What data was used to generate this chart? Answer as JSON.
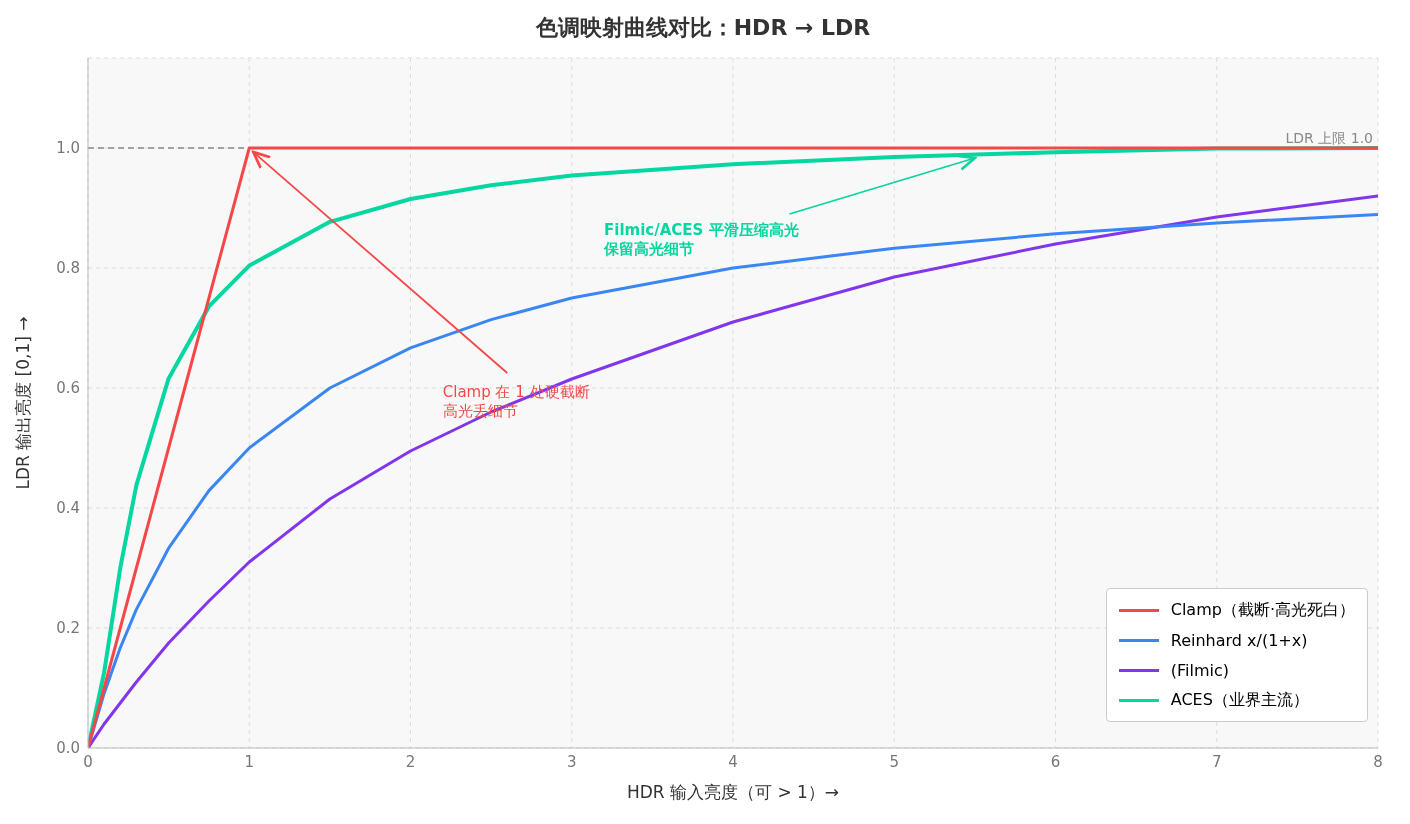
{
  "chart_data": {
    "type": "line",
    "title": "色调映射曲线对比：HDR → LDR",
    "xlabel": "HDR 输入亮度（可 > 1）→",
    "ylabel": "LDR 输出亮度 [0,1] →",
    "x": [
      0,
      0.1,
      0.2,
      0.3,
      0.5,
      0.75,
      1,
      1.5,
      2,
      2.5,
      3,
      4,
      5,
      6,
      7,
      8
    ],
    "series": [
      {
        "name": "Clamp（截断·高光死白）",
        "color": "#f44848",
        "values": [
          0,
          0.1,
          0.2,
          0.3,
          0.5,
          0.75,
          1,
          1,
          1,
          1,
          1,
          1,
          1,
          1,
          1,
          1
        ]
      },
      {
        "name": "Reinhard  x/(1+x)",
        "color": "#3a86f5",
        "values": [
          0,
          0.091,
          0.167,
          0.231,
          0.333,
          0.429,
          0.5,
          0.6,
          0.667,
          0.714,
          0.75,
          0.8,
          0.833,
          0.857,
          0.875,
          0.889
        ]
      },
      {
        "name": "(Filmic)",
        "color": "#8236ec",
        "values": [
          0,
          0.04,
          0.075,
          0.11,
          0.175,
          0.245,
          0.31,
          0.415,
          0.495,
          0.56,
          0.615,
          0.71,
          0.785,
          0.84,
          0.885,
          0.92
        ]
      },
      {
        "name": "ACES（业界主流）",
        "color": "#06d6a0",
        "values": [
          0,
          0.126,
          0.3,
          0.438,
          0.616,
          0.736,
          0.804,
          0.877,
          0.915,
          0.938,
          0.954,
          0.973,
          0.985,
          0.993,
          0.999,
          1
        ]
      }
    ],
    "xlim": [
      0,
      8
    ],
    "xticks": [
      0,
      1,
      2,
      3,
      4,
      5,
      6,
      7,
      8
    ],
    "ylim": [
      0,
      1.15
    ],
    "yticks": [
      {
        "value": 0,
        "label": "0.0"
      },
      {
        "value": 0.2,
        "label": "0.2"
      },
      {
        "value": 0.4,
        "label": "0.4"
      },
      {
        "value": 0.6,
        "label": "0.6"
      },
      {
        "value": 0.8,
        "label": "0.8"
      },
      {
        "value": 1,
        "label": "1.0"
      }
    ],
    "ref_lines": [
      {
        "axis": "y",
        "value": 1,
        "label": "LDR 上限 1.0",
        "color": "#888888",
        "line_style": "dashed"
      }
    ],
    "annotations": [
      {
        "text": "Clamp 在 1 处硬截断高光丢细节",
        "x": 1,
        "y": 1
      },
      {
        "text": "Filmic/ACES 平滑压缩高光保留高光细节",
        "x": 5.5,
        "y": 0.99
      }
    ],
    "grid": true,
    "legend": "bottom right",
    "marker": "none",
    "line_style": "solid"
  }
}
